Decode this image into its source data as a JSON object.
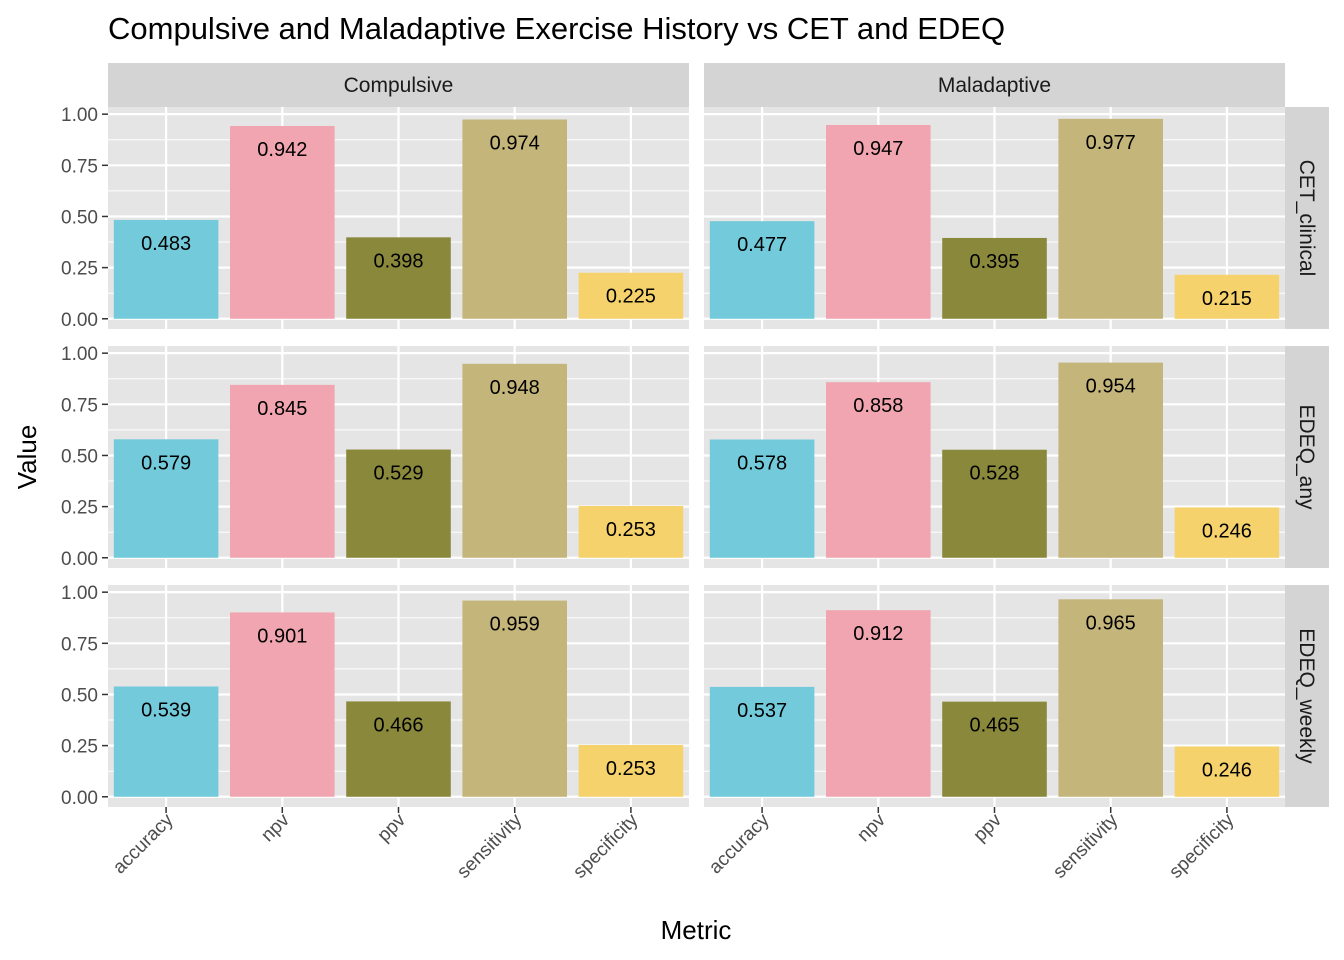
{
  "chart_data": {
    "type": "bar",
    "title": "Compulsive and Maladaptive Exercise History vs CET and EDEQ",
    "xlabel": "Metric",
    "ylabel": "Value",
    "ylim": [
      0,
      1.0
    ],
    "yticks": [
      "0.00",
      "0.25",
      "0.50",
      "0.75",
      "1.00"
    ],
    "ytick_values": [
      0,
      0.25,
      0.5,
      0.75,
      1.0
    ],
    "categories": [
      "accuracy",
      "npv",
      "ppv",
      "sensitivity",
      "specificity"
    ],
    "colors": [
      "#72CADB",
      "#F0A5B0",
      "#8A883B",
      "#C4B57A",
      "#F6D26C"
    ],
    "panel_bg": "#E5E5E5",
    "strip_bg": "#D4D4D4",
    "grid": true,
    "legend": "none",
    "facet_columns": [
      "Compulsive",
      "Maladaptive"
    ],
    "facet_rows": [
      "CET_clinical",
      "EDEQ_any",
      "EDEQ_weekly"
    ],
    "panels": [
      {
        "col": "Compulsive",
        "row": "CET_clinical",
        "values": [
          0.483,
          0.942,
          0.398,
          0.974,
          0.225
        ],
        "labels": [
          "0.483",
          "0.942",
          "0.398",
          "0.974",
          "0.225"
        ]
      },
      {
        "col": "Maladaptive",
        "row": "CET_clinical",
        "values": [
          0.477,
          0.947,
          0.395,
          0.977,
          0.215
        ],
        "labels": [
          "0.477",
          "0.947",
          "0.395",
          "0.977",
          "0.215"
        ]
      },
      {
        "col": "Compulsive",
        "row": "EDEQ_any",
        "values": [
          0.579,
          0.845,
          0.529,
          0.948,
          0.253
        ],
        "labels": [
          "0.579",
          "0.845",
          "0.529",
          "0.948",
          "0.253"
        ]
      },
      {
        "col": "Maladaptive",
        "row": "EDEQ_any",
        "values": [
          0.578,
          0.858,
          0.528,
          0.954,
          0.246
        ],
        "labels": [
          "0.578",
          "0.858",
          "0.528",
          "0.954",
          "0.246"
        ]
      },
      {
        "col": "Compulsive",
        "row": "EDEQ_weekly",
        "values": [
          0.539,
          0.901,
          0.466,
          0.959,
          0.253
        ],
        "labels": [
          "0.539",
          "0.901",
          "0.466",
          "0.959",
          "0.253"
        ]
      },
      {
        "col": "Maladaptive",
        "row": "EDEQ_weekly",
        "values": [
          0.537,
          0.912,
          0.465,
          0.965,
          0.246
        ],
        "labels": [
          "0.537",
          "0.912",
          "0.465",
          "0.965",
          "0.246"
        ]
      }
    ]
  }
}
